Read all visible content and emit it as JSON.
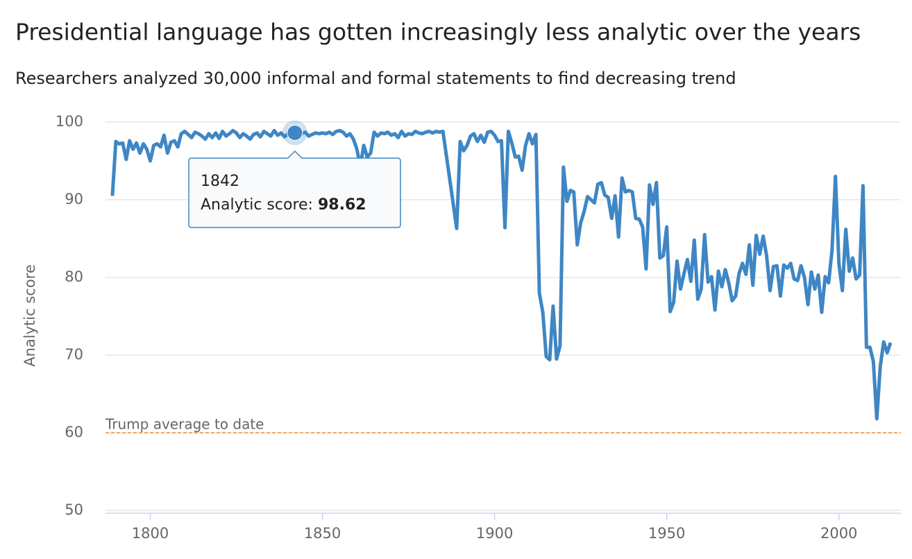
{
  "chart_data": {
    "type": "line",
    "title": "Presidential language has gotten increasingly less analytic over the years",
    "subtitle": "Researchers analyzed 30,000 informal and formal statements to find decreasing trend",
    "y_label": "Analytic score",
    "color": "#3f86c4",
    "grid": true,
    "xlim": [
      1787,
      2018
    ],
    "ylim": [
      50,
      100
    ],
    "xticks": [
      1800,
      1850,
      1900,
      1950,
      2000
    ],
    "yticks": [
      50,
      60,
      70,
      80,
      90,
      100
    ],
    "reference_line": {
      "value": 60,
      "label": "Trump average to date",
      "color": "#f28f2c"
    },
    "tooltip": {
      "x": 1842,
      "label": "Analytic score:",
      "value": 98.62
    },
    "x": [
      1789,
      1790,
      1791,
      1792,
      1793,
      1794,
      1795,
      1796,
      1797,
      1798,
      1799,
      1800,
      1801,
      1802,
      1803,
      1804,
      1805,
      1806,
      1807,
      1808,
      1809,
      1810,
      1811,
      1812,
      1813,
      1814,
      1815,
      1816,
      1817,
      1818,
      1819,
      1820,
      1821,
      1822,
      1823,
      1824,
      1825,
      1826,
      1827,
      1828,
      1829,
      1830,
      1831,
      1832,
      1833,
      1834,
      1835,
      1836,
      1837,
      1838,
      1839,
      1840,
      1841,
      1842,
      1843,
      1844,
      1845,
      1846,
      1847,
      1848,
      1849,
      1850,
      1851,
      1852,
      1853,
      1854,
      1855,
      1856,
      1857,
      1858,
      1859,
      1860,
      1861,
      1862,
      1863,
      1864,
      1865,
      1866,
      1867,
      1868,
      1869,
      1870,
      1871,
      1872,
      1873,
      1874,
      1875,
      1876,
      1877,
      1878,
      1879,
      1880,
      1881,
      1882,
      1883,
      1884,
      1885,
      1889,
      1890,
      1891,
      1892,
      1893,
      1894,
      1895,
      1896,
      1897,
      1898,
      1899,
      1900,
      1901,
      1902,
      1903,
      1904,
      1905,
      1906,
      1907,
      1908,
      1909,
      1910,
      1911,
      1912,
      1913,
      1914,
      1915,
      1916,
      1917,
      1918,
      1919,
      1920,
      1921,
      1922,
      1923,
      1924,
      1925,
      1926,
      1927,
      1928,
      1929,
      1930,
      1931,
      1932,
      1933,
      1934,
      1935,
      1936,
      1937,
      1938,
      1939,
      1940,
      1941,
      1942,
      1943,
      1944,
      1945,
      1946,
      1947,
      1948,
      1949,
      1950,
      1951,
      1952,
      1953,
      1954,
      1955,
      1956,
      1957,
      1958,
      1959,
      1960,
      1961,
      1962,
      1963,
      1964,
      1965,
      1966,
      1967,
      1968,
      1969,
      1970,
      1971,
      1972,
      1973,
      1974,
      1975,
      1976,
      1977,
      1978,
      1979,
      1980,
      1981,
      1982,
      1983,
      1984,
      1985,
      1986,
      1987,
      1988,
      1989,
      1990,
      1991,
      1992,
      1993,
      1994,
      1995,
      1996,
      1997,
      1998,
      1999,
      2000,
      2001,
      2002,
      2003,
      2004,
      2005,
      2006,
      2007,
      2008,
      2009,
      2010,
      2011,
      2012,
      2013,
      2014,
      2015
    ],
    "values": [
      90.5,
      97.5,
      97.2,
      97.3,
      95.2,
      97.6,
      96.5,
      97.3,
      96,
      97.2,
      96.5,
      95,
      97,
      97.2,
      96.8,
      98.3,
      96,
      97.4,
      97.6,
      96.8,
      98.5,
      98.8,
      98.4,
      98,
      98.7,
      98.5,
      98.2,
      97.8,
      98.5,
      98,
      98.6,
      97.9,
      98.8,
      98.2,
      98.5,
      98.9,
      98.6,
      98,
      98.5,
      98.2,
      97.8,
      98.4,
      98.6,
      98.1,
      98.8,
      98.5,
      98.2,
      98.9,
      98.3,
      98.6,
      98.1,
      98.5,
      98.4,
      98.62,
      98.3,
      98.5,
      98.7,
      98.2,
      98.4,
      98.6,
      98.5,
      98.6,
      98.5,
      98.7,
      98.4,
      98.8,
      98.9,
      98.7,
      98.2,
      98.5,
      97.8,
      96.5,
      94.3,
      97,
      95.5,
      96,
      98.7,
      98.2,
      98.6,
      98.5,
      98.7,
      98.3,
      98.5,
      98,
      98.8,
      98.2,
      98.5,
      98.4,
      98.8,
      98.6,
      98.5,
      98.7,
      98.8,
      98.6,
      98.8,
      98.7,
      98.8,
      86.3,
      97.5,
      96.3,
      97,
      98.2,
      98.5,
      97.5,
      98.3,
      97.4,
      98.7,
      98.8,
      98.3,
      97.5,
      97.6,
      86.4,
      98.8,
      97.3,
      95.5,
      95.6,
      93.8,
      97,
      98.5,
      97.2,
      98.4,
      78,
      75.5,
      69.8,
      69.4,
      76.3,
      69.5,
      71.2,
      94.2,
      89.8,
      91.2,
      91,
      84.2,
      87,
      88.5,
      90.4,
      90,
      89.6,
      92,
      92.2,
      90.6,
      90.3,
      87.6,
      90.5,
      85.2,
      92.8,
      91,
      91.2,
      91,
      87.6,
      87.5,
      86.5,
      81.1,
      91.9,
      89.4,
      92.2,
      82.5,
      82.8,
      86.5,
      75.6,
      76.8,
      82.1,
      78.5,
      80.5,
      82.3,
      79.5,
      84.8,
      77.2,
      78.5,
      85.5,
      79.4,
      80.1,
      75.8,
      80.8,
      78.8,
      81,
      79.3,
      77,
      77.6,
      80.5,
      81.8,
      80.4,
      84.2,
      79,
      85.4,
      83,
      85.3,
      82.8,
      78.3,
      81.4,
      81.5,
      77.6,
      81.6,
      81.2,
      81.8,
      79.8,
      79.6,
      81.5,
      80,
      76.5,
      80.7,
      78.5,
      80.3,
      75.5,
      80.1,
      79.3,
      83.5,
      93,
      81.8,
      78.3,
      86.2,
      80.8,
      82.5,
      79.8,
      80.3,
      91.8,
      71,
      71,
      69.2,
      61.8,
      68.5,
      71.7,
      70.3,
      71.6
    ]
  }
}
